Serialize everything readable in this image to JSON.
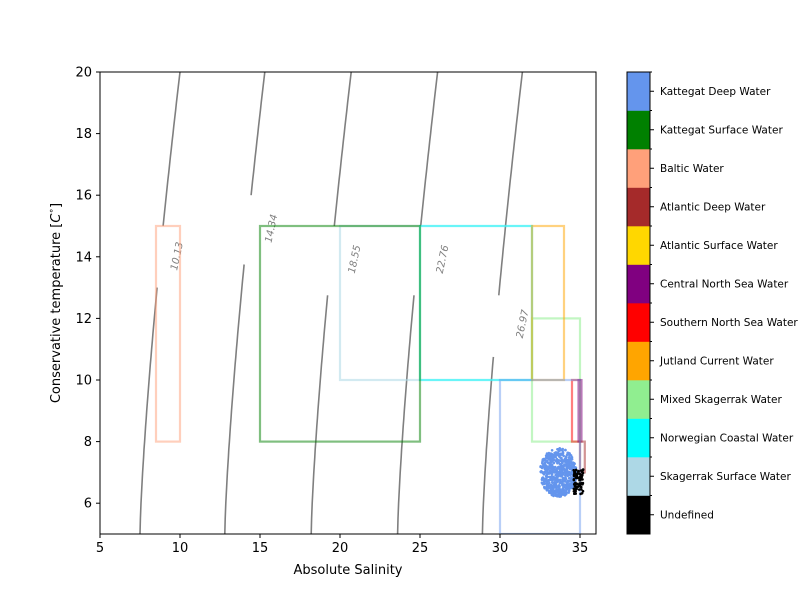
{
  "chart_data": {
    "type": "scatter",
    "xlabel": "Absolute Salinity",
    "ylabel": "Conservative temperature [$C^{\\circ}$]",
    "xlim": [
      5,
      36
    ],
    "ylim": [
      5,
      20
    ],
    "x_ticks": [
      5,
      10,
      15,
      20,
      25,
      30,
      35
    ],
    "y_ticks": [
      6,
      8,
      10,
      12,
      14,
      16,
      18,
      20
    ],
    "grid": false,
    "legend": "colorbar-right",
    "density_contours": [
      {
        "label": "10.13",
        "sa_at_t5": 7.5,
        "sa_at_t20": 10.0,
        "label_sa": 14.0,
        "label_t": 14.0
      },
      {
        "label": "14.34",
        "sa_at_t5": 12.8,
        "sa_at_t20": 15.3,
        "label_sa": 19.9,
        "label_t": 14.9
      },
      {
        "label": "18.55",
        "sa_at_t5": 18.2,
        "sa_at_t20": 20.7,
        "label_sa": 25.1,
        "label_t": 13.9
      },
      {
        "label": "22.76",
        "sa_at_t5": 23.6,
        "sa_at_t20": 26.1,
        "label_sa": 30.6,
        "label_t": 13.9
      },
      {
        "label": "26.97",
        "sa_at_t5": 28.9,
        "sa_at_t20": 31.4,
        "label_sa": 35.6,
        "label_t": 11.8
      }
    ],
    "water_masses": [
      {
        "name": "Undefined",
        "color": "#000000"
      },
      {
        "name": "Skagerrak Surface Water",
        "color": "#add8e6",
        "sa": [
          20,
          32
        ],
        "t": [
          10,
          15
        ]
      },
      {
        "name": "Norwegian Coastal Water",
        "color": "#00ffff",
        "sa": [
          25,
          32
        ],
        "t": [
          10,
          15
        ]
      },
      {
        "name": "Mixed Skagerrak Water",
        "color": "#90ee90",
        "sa": [
          32,
          35
        ],
        "t": [
          8,
          12
        ]
      },
      {
        "name": "Jutland Current Water",
        "color": "#ffa500",
        "sa": [
          32,
          34
        ],
        "t": [
          10,
          15
        ]
      },
      {
        "name": "Southern North Sea Water",
        "color": "#ff0000",
        "sa": [
          34.5,
          35
        ],
        "t": [
          8,
          10
        ]
      },
      {
        "name": "Central North Sea Water",
        "color": "#800080",
        "sa": [
          34.9,
          35.1
        ],
        "t": [
          8,
          10
        ]
      },
      {
        "name": "Atlantic Surface Water",
        "color": "#ffd700"
      },
      {
        "name": "Atlantic Deep Water",
        "color": "#a52a2a",
        "sa": [
          35,
          35.3
        ],
        "t": [
          7,
          8
        ]
      },
      {
        "name": "Baltic Water",
        "color": "#ffa07a",
        "sa": [
          8.5,
          10
        ],
        "t": [
          8,
          15
        ]
      },
      {
        "name": "Kattegat Surface Water",
        "color": "#008000",
        "sa": [
          15,
          25
        ],
        "t": [
          8,
          15
        ]
      },
      {
        "name": "Kattegat Deep Water",
        "color": "#6495ed",
        "sa": [
          30,
          35
        ],
        "t": [
          5,
          10
        ]
      }
    ],
    "scatter_cluster": {
      "series": "Kattegat Deep Water",
      "sa_range": [
        32.5,
        34.8
      ],
      "t_range": [
        6.2,
        7.8
      ]
    },
    "undefined_points": {
      "sa_range": [
        34.6,
        35.2
      ],
      "t_range": [
        6.3,
        7.1
      ]
    }
  }
}
